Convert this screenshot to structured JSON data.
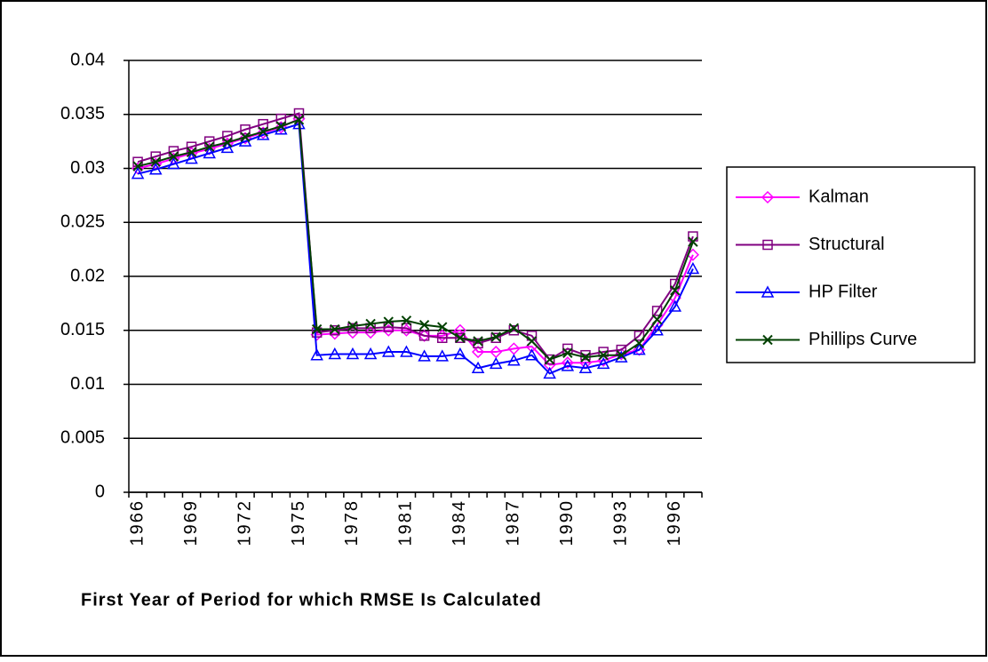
{
  "chart_data": {
    "type": "line",
    "x_label": "First Year of Period for which RMSE Is Calculated",
    "categories": [
      "1966",
      null,
      null,
      "1969",
      null,
      null,
      "1972",
      null,
      null,
      "1975",
      null,
      null,
      "1978",
      null,
      null,
      "1981",
      null,
      null,
      "1984",
      null,
      null,
      "1987",
      null,
      null,
      "1990",
      null,
      null,
      "1993",
      null,
      null,
      "1996",
      null
    ],
    "ylim": [
      0,
      0.04
    ],
    "yticks": [
      0,
      0.005,
      0.01,
      0.015,
      0.02,
      0.025,
      0.03,
      0.035,
      0.04
    ],
    "grid": true,
    "legend": "right",
    "series": [
      {
        "name": "Kalman",
        "color": "#ff00ff",
        "marker": "diamond",
        "values": [
          0.03,
          0.0304,
          0.0309,
          0.0314,
          0.0318,
          0.0323,
          0.0328,
          0.0333,
          0.0338,
          0.0346,
          0.0146,
          0.0147,
          0.0148,
          0.0148,
          0.015,
          0.015,
          0.0145,
          0.0145,
          0.015,
          0.013,
          0.013,
          0.0133,
          0.0135,
          0.0118,
          0.012,
          0.012,
          0.0122,
          0.0128,
          0.0132,
          0.0155,
          0.018,
          0.022
        ]
      },
      {
        "name": "Structural",
        "color": "#800080",
        "marker": "square",
        "values": [
          0.0306,
          0.0311,
          0.0316,
          0.032,
          0.0325,
          0.033,
          0.0336,
          0.0341,
          0.0346,
          0.0351,
          0.0148,
          0.015,
          0.0152,
          0.0152,
          0.0153,
          0.0152,
          0.0145,
          0.0143,
          0.0143,
          0.0138,
          0.0143,
          0.015,
          0.0145,
          0.0123,
          0.0133,
          0.0127,
          0.013,
          0.0132,
          0.0145,
          0.0168,
          0.0193,
          0.0237
        ]
      },
      {
        "name": "HP Filter",
        "color": "#0000ff",
        "marker": "triangle",
        "values": [
          0.0295,
          0.0299,
          0.0304,
          0.0309,
          0.0314,
          0.0319,
          0.0325,
          0.0331,
          0.0336,
          0.0341,
          0.0127,
          0.0128,
          0.0128,
          0.0128,
          0.013,
          0.013,
          0.0126,
          0.0126,
          0.0128,
          0.0115,
          0.0119,
          0.0122,
          0.0127,
          0.011,
          0.0117,
          0.0115,
          0.0119,
          0.0125,
          0.0132,
          0.015,
          0.0172,
          0.0207
        ]
      },
      {
        "name": "Phillips Curve",
        "color": "#004000",
        "marker": "x",
        "values": [
          0.0302,
          0.0306,
          0.0311,
          0.0315,
          0.032,
          0.0324,
          0.0329,
          0.0334,
          0.0339,
          0.0345,
          0.0151,
          0.0151,
          0.0154,
          0.0156,
          0.0158,
          0.0159,
          0.0155,
          0.0153,
          0.0143,
          0.014,
          0.0144,
          0.0152,
          0.014,
          0.0123,
          0.0129,
          0.0125,
          0.0127,
          0.0127,
          0.0138,
          0.016,
          0.0187,
          0.0232
        ]
      }
    ]
  }
}
